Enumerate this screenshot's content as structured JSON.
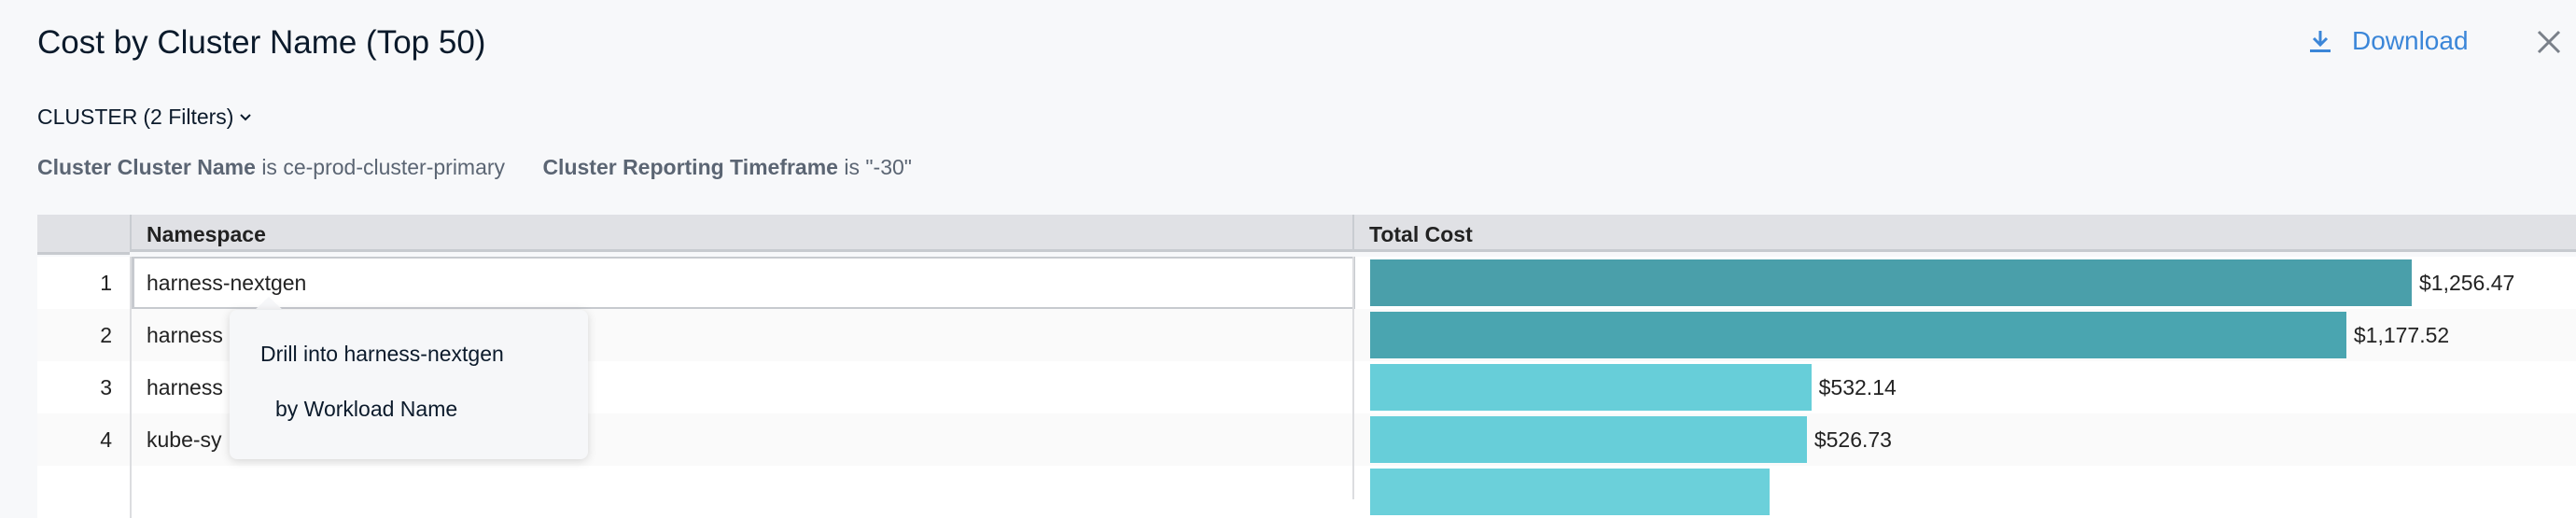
{
  "header": {
    "title": "Cost by Cluster Name (Top 50)",
    "download_label": "Download",
    "download_icon": "download-icon",
    "close_icon": "close-icon",
    "accent_color": "#3b86d8"
  },
  "filters": {
    "toggle_label": "CLUSTER",
    "toggle_count": "(2 Filters)",
    "items": [
      {
        "field": "Cluster Cluster Name",
        "operator": "is",
        "value": "ce-prod-cluster-primary"
      },
      {
        "field": "Cluster Reporting Timeframe",
        "operator": "is",
        "value": "\"-30\""
      }
    ]
  },
  "table": {
    "columns": [
      "Namespace",
      "Total Cost"
    ],
    "rows": [
      {
        "index": "1",
        "namespace": "harness-nextgen",
        "cost_label": "$1,256.47"
      },
      {
        "index": "2",
        "namespace": "harness",
        "cost_label": "$1,177.52"
      },
      {
        "index": "3",
        "namespace": "harness",
        "cost_label": "$532.14"
      },
      {
        "index": "4",
        "namespace": "kube-sy",
        "cost_label": "$526.73"
      }
    ]
  },
  "popup": {
    "title": "Drill into harness-nextgen",
    "option": "by Workload Name"
  },
  "chart_data": {
    "type": "bar",
    "orientation": "horizontal",
    "categories": [
      "harness-nextgen",
      "harness",
      "harness",
      "kube-sy",
      ""
    ],
    "values": [
      1256.47,
      1177.52,
      532.14,
      526.73,
      482
    ],
    "colors": [
      "#4a9faa",
      "#4aa5b0",
      "#67ced9",
      "#67ced9",
      "#6bd0da"
    ]
  }
}
